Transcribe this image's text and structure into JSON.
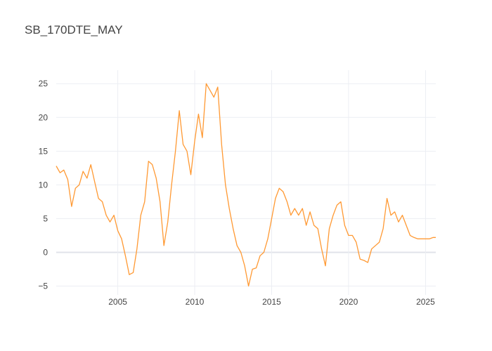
{
  "chart_data": {
    "type": "line",
    "title": "SB_170DTE_MAY",
    "xlabel": "",
    "ylabel": "",
    "x_ticks": [
      "2005",
      "2010",
      "2015",
      "2020",
      "2025"
    ],
    "y_ticks": [
      "−5",
      "0",
      "5",
      "10",
      "15",
      "20",
      "25"
    ],
    "xlim": [
      "2001-01-01",
      "2025-09-01"
    ],
    "ylim": [
      -6.3,
      27
    ],
    "grid": true,
    "legend": "none",
    "line_color": "#ff9933",
    "series": [
      {
        "x": [
          "2001-01-01",
          "2001-04-01",
          "2001-07-01",
          "2001-10-01",
          "2002-01-01",
          "2002-04-01",
          "2002-07-01",
          "2002-10-01",
          "2003-01-01",
          "2003-04-01",
          "2003-07-01",
          "2003-10-01",
          "2004-01-01",
          "2004-04-01",
          "2004-07-01",
          "2004-10-01",
          "2005-01-01",
          "2005-04-01",
          "2005-07-01",
          "2005-10-01",
          "2006-01-01",
          "2006-04-01",
          "2006-07-01",
          "2006-10-01",
          "2007-01-01",
          "2007-04-01",
          "2007-07-01",
          "2007-10-01",
          "2008-01-01",
          "2008-04-01",
          "2008-07-01",
          "2008-10-01",
          "2009-01-01",
          "2009-04-01",
          "2009-07-01",
          "2009-10-01",
          "2010-01-01",
          "2010-04-01",
          "2010-07-01",
          "2010-10-01",
          "2011-01-01",
          "2011-04-01",
          "2011-07-01",
          "2011-10-01",
          "2012-01-01",
          "2012-04-01",
          "2012-07-01",
          "2012-10-01",
          "2013-01-01",
          "2013-04-01",
          "2013-07-01",
          "2013-10-01",
          "2014-01-01",
          "2014-04-01",
          "2014-07-01",
          "2014-10-01",
          "2015-01-01",
          "2015-04-01",
          "2015-07-01",
          "2015-10-01",
          "2016-01-01",
          "2016-04-01",
          "2016-07-01",
          "2016-10-01",
          "2017-01-01",
          "2017-04-01",
          "2017-07-01",
          "2017-10-01",
          "2018-01-01",
          "2018-04-01",
          "2018-07-01",
          "2018-10-01",
          "2019-01-01",
          "2019-04-01",
          "2019-07-01",
          "2019-10-01",
          "2020-01-01",
          "2020-04-01",
          "2020-07-01",
          "2020-10-01",
          "2021-01-01",
          "2021-04-01",
          "2021-07-01",
          "2021-10-01",
          "2022-01-01",
          "2022-04-01",
          "2022-07-01",
          "2022-10-01",
          "2023-01-01",
          "2023-04-01",
          "2023-07-01",
          "2023-10-01",
          "2024-01-01",
          "2024-04-01",
          "2024-07-01",
          "2024-10-01",
          "2025-01-01",
          "2025-04-01",
          "2025-07-01",
          "2025-09-01"
        ],
        "y": [
          12.8,
          11.8,
          12.2,
          10.8,
          6.8,
          9.5,
          10.0,
          12.0,
          11.0,
          13.0,
          10.5,
          8.0,
          7.5,
          5.5,
          4.5,
          5.5,
          3.2,
          2.0,
          -0.5,
          -3.3,
          -3.0,
          0.5,
          5.5,
          7.5,
          13.5,
          13.0,
          11.0,
          7.5,
          1.0,
          4.5,
          10.0,
          15.0,
          21.0,
          16.0,
          15.0,
          11.5,
          16.5,
          20.5,
          17.0,
          25.0,
          24.0,
          23.0,
          24.5,
          16.0,
          10.0,
          6.5,
          3.5,
          1.0,
          0.0,
          -2.0,
          -5.0,
          -2.5,
          -2.3,
          -0.5,
          0.0,
          2.0,
          5.0,
          8.0,
          9.5,
          9.0,
          7.5,
          5.5,
          6.5,
          5.5,
          6.5,
          4.0,
          6.0,
          4.0,
          3.5,
          0.5,
          -2.0,
          3.5,
          5.5,
          7.0,
          7.5,
          4.0,
          2.5,
          2.5,
          1.5,
          -1.0,
          -1.2,
          -1.5,
          0.5,
          1.0,
          1.5,
          3.5,
          8.0,
          5.5,
          6.0,
          4.5,
          5.5,
          4.0,
          2.5,
          2.2,
          2.0,
          2.0,
          2.0,
          2.0,
          2.2,
          2.2
        ]
      }
    ]
  }
}
